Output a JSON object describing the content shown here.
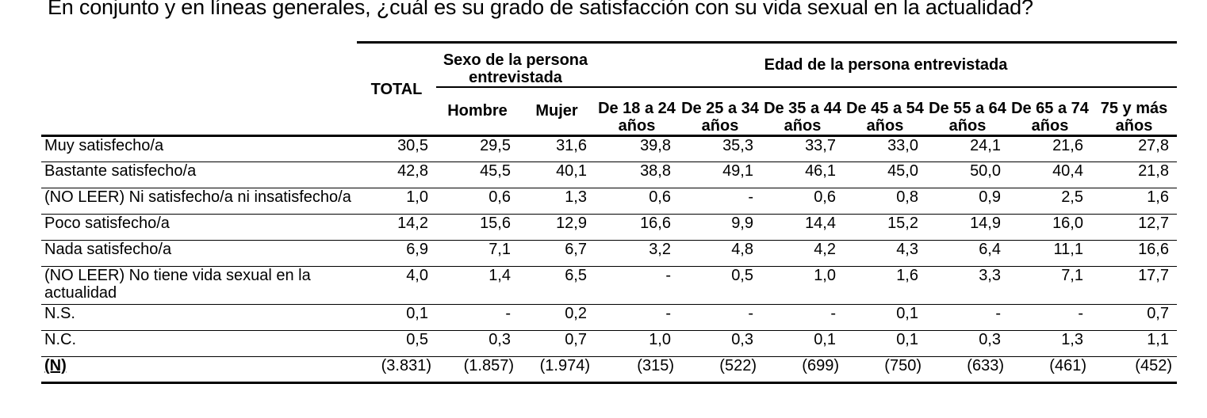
{
  "title": "En conjunto y en líneas generales, ¿cuál es su grado de satisfacción con su vida sexual en la actualidad?",
  "header": {
    "total": "TOTAL",
    "sexo_group": "Sexo de la persona entrevistada",
    "edad_group": "Edad de la persona entrevistada",
    "sexo_cols": [
      "Hombre",
      "Mujer"
    ],
    "edad_cols": [
      {
        "line1": "De 18 a 24",
        "line2": "años"
      },
      {
        "line1": "De 25 a 34",
        "line2": "años"
      },
      {
        "line1": "De 35 a 44",
        "line2": "años"
      },
      {
        "line1": "De 45 a 54",
        "line2": "años"
      },
      {
        "line1": "De 55 a 64",
        "line2": "años"
      },
      {
        "line1": "De 65 a 74",
        "line2": "años"
      },
      {
        "line1": "75 y más",
        "line2": "años"
      }
    ]
  },
  "rows": [
    {
      "label": "Muy satisfecho/a",
      "values": [
        "30,5",
        "29,5",
        "31,6",
        "39,8",
        "35,3",
        "33,7",
        "33,0",
        "24,1",
        "21,6",
        "27,8"
      ]
    },
    {
      "label": "Bastante satisfecho/a",
      "values": [
        "42,8",
        "45,5",
        "40,1",
        "38,8",
        "49,1",
        "46,1",
        "45,0",
        "50,0",
        "40,4",
        "21,8"
      ]
    },
    {
      "label": "(NO LEER) Ni satisfecho/a ni insatisfecho/a",
      "values": [
        "1,0",
        "0,6",
        "1,3",
        "0,6",
        "-",
        "0,6",
        "0,8",
        "0,9",
        "2,5",
        "1,6"
      ]
    },
    {
      "label": "Poco satisfecho/a",
      "values": [
        "14,2",
        "15,6",
        "12,9",
        "16,6",
        "9,9",
        "14,4",
        "15,2",
        "14,9",
        "16,0",
        "12,7"
      ]
    },
    {
      "label": "Nada satisfecho/a",
      "values": [
        "6,9",
        "7,1",
        "6,7",
        "3,2",
        "4,8",
        "4,2",
        "4,3",
        "6,4",
        "11,1",
        "16,6"
      ]
    },
    {
      "label": "(NO LEER) No tiene vida sexual en la actualidad",
      "values": [
        "4,0",
        "1,4",
        "6,5",
        "-",
        "0,5",
        "1,0",
        "1,6",
        "3,3",
        "7,1",
        "17,7"
      ]
    },
    {
      "label": "N.S.",
      "values": [
        "0,1",
        "-",
        "0,2",
        "-",
        "-",
        "-",
        "0,1",
        "-",
        "-",
        "0,7"
      ]
    },
    {
      "label": "N.C.",
      "values": [
        "0,5",
        "0,3",
        "0,7",
        "1,0",
        "0,3",
        "0,1",
        "0,1",
        "0,3",
        "1,3",
        "1,1"
      ]
    },
    {
      "label": "(N)",
      "values": [
        "(3.831)",
        "(1.857)",
        "(1.974)",
        "(315)",
        "(522)",
        "(699)",
        "(750)",
        "(633)",
        "(461)",
        "(452)"
      ]
    }
  ]
}
